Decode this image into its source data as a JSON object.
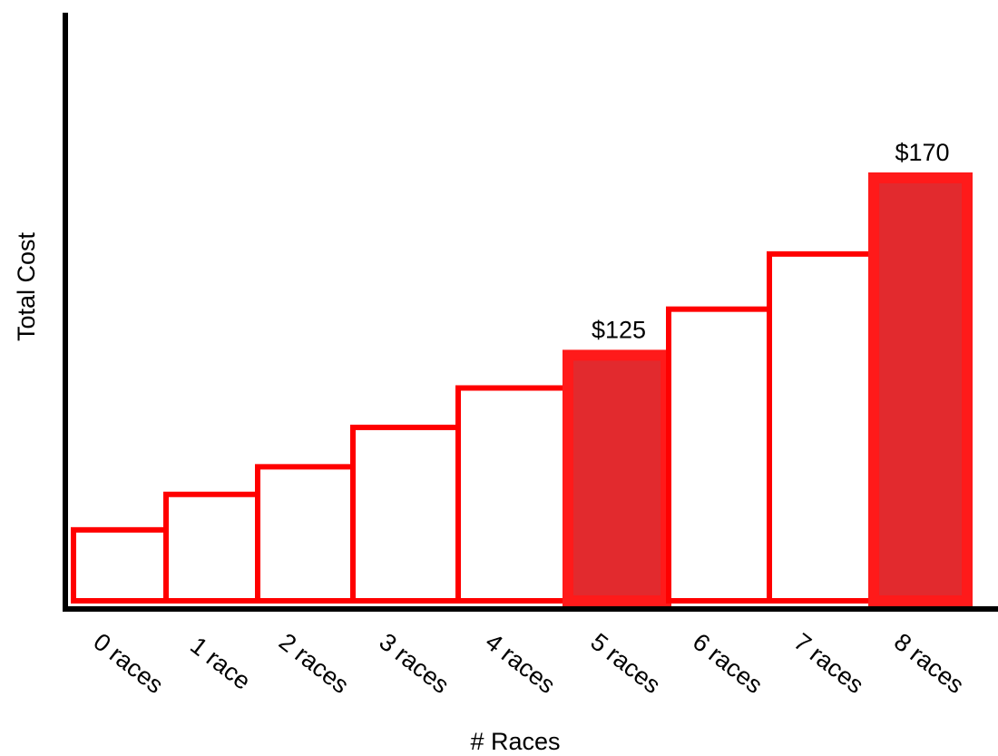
{
  "chart_data": {
    "type": "bar",
    "title": "",
    "xlabel": "# Races",
    "ylabel": "Total Cost",
    "categories": [
      "0 races",
      "1 race",
      "2 races",
      "3  races",
      "4 races",
      "5 races",
      "6 races",
      "7 races",
      "8 races"
    ],
    "values": [
      80,
      89,
      96,
      106,
      116,
      125,
      136,
      150,
      170
    ],
    "highlighted": [
      false,
      false,
      false,
      false,
      false,
      true,
      false,
      false,
      true
    ],
    "data_labels": [
      "",
      "",
      "",
      "",
      "",
      "$125",
      "",
      "",
      "$170"
    ],
    "ylim": [
      62,
      175
    ],
    "grid": false,
    "legend": "none",
    "y_ticks_shown": false
  },
  "colors": {
    "bar_outline": "#ff0000",
    "bar_fill_default": "#ffffff",
    "bar_fill_highlight": "#e22a2e",
    "highlight_outline": "#ff1a1a",
    "axis": "#000000"
  }
}
